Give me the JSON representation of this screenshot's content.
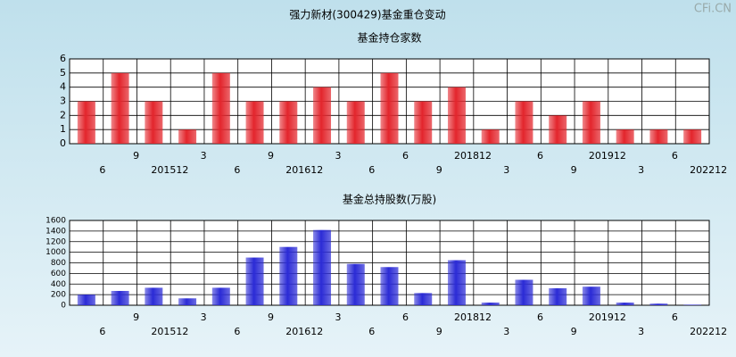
{
  "page_title": "强力新材(300429)基金重仓变动",
  "watermark": "CFi.CN",
  "chart_data": [
    {
      "type": "bar",
      "title": "基金持仓家数",
      "color": "#e3252c",
      "categories": [
        "6",
        "9",
        "201512",
        "3",
        "6",
        "9",
        "201612",
        "3",
        "6",
        "6",
        "9",
        "201812",
        "3",
        "6",
        "9",
        "201912",
        "3",
        "6",
        "202212"
      ],
      "values": [
        3,
        5,
        3,
        1,
        5,
        3,
        3,
        4,
        3,
        5,
        3,
        4,
        1,
        3,
        2,
        3,
        1,
        1,
        1
      ],
      "ylim": [
        0,
        6
      ],
      "yticks": [
        0,
        1,
        2,
        3,
        4,
        5,
        6
      ],
      "grid": true
    },
    {
      "type": "bar",
      "title": "基金总持股数(万股)",
      "color": "#2b2bd6",
      "categories": [
        "6",
        "9",
        "201512",
        "3",
        "6",
        "9",
        "201612",
        "3",
        "6",
        "6",
        "9",
        "201812",
        "3",
        "6",
        "9",
        "201912",
        "3",
        "6",
        "202212"
      ],
      "values": [
        200,
        270,
        330,
        130,
        330,
        900,
        1100,
        1420,
        780,
        720,
        230,
        850,
        50,
        480,
        320,
        350,
        50,
        30,
        10
      ],
      "ylim": [
        0,
        1600
      ],
      "yticks": [
        0,
        200,
        400,
        600,
        800,
        1000,
        1200,
        1400,
        1600
      ],
      "grid": true
    }
  ]
}
